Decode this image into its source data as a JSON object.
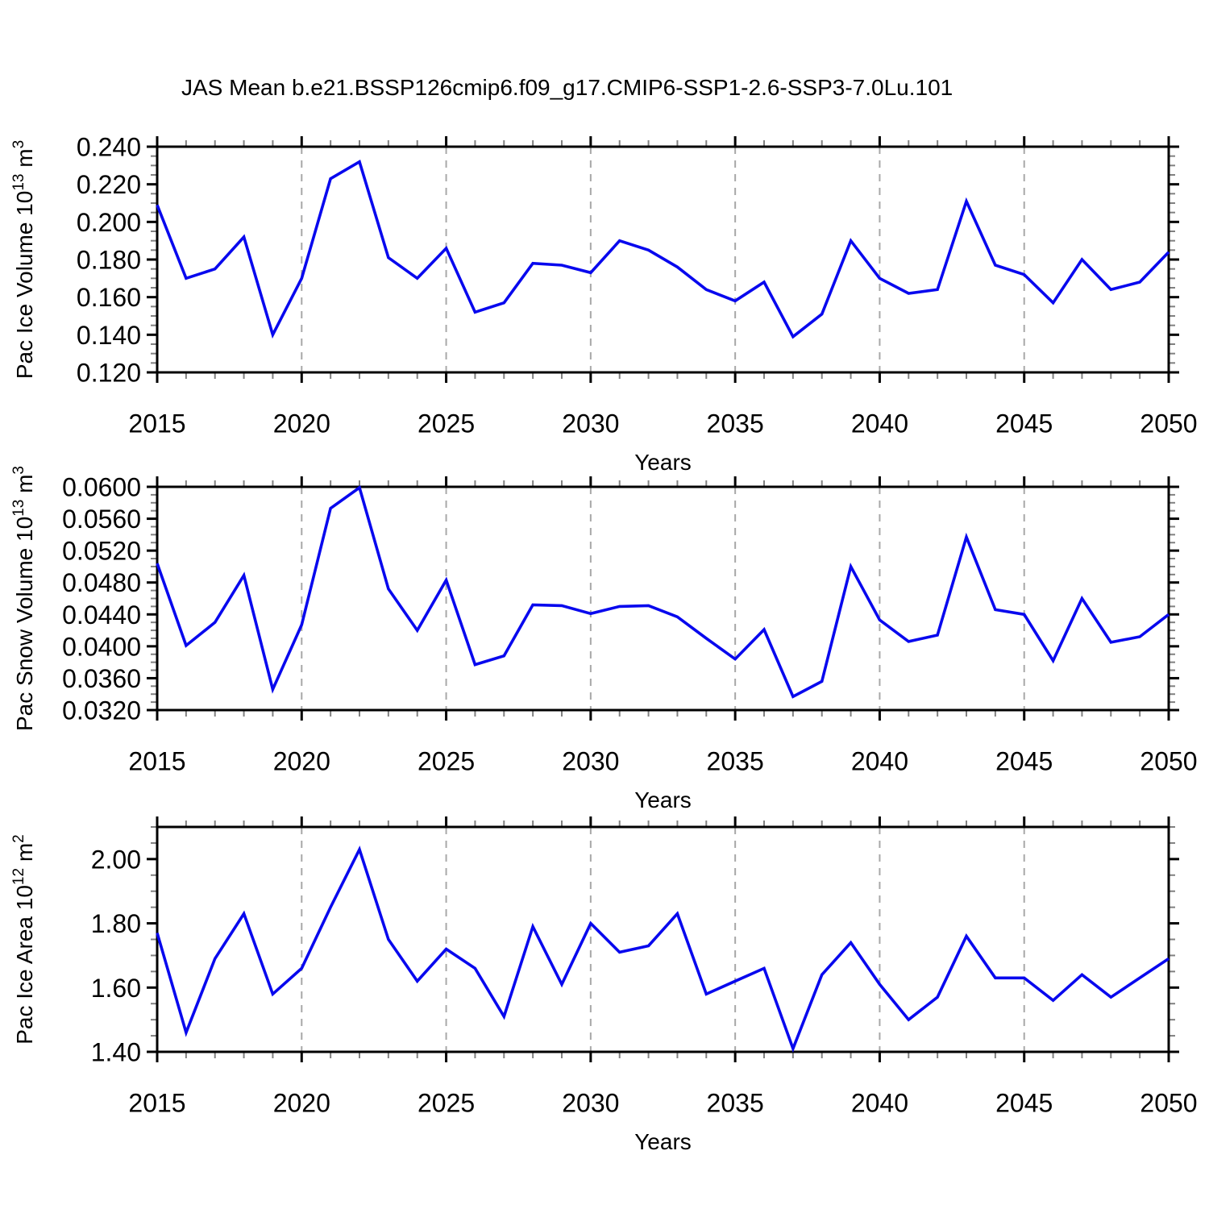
{
  "title": "JAS Mean b.e21.BSSP126cmip6.f09_g17.CMIP6-SSP1-2.6-SSP3-7.0Lu.101",
  "xlabel": "Years",
  "x_tick_labels": [
    "2015",
    "2020",
    "2025",
    "2030",
    "2035",
    "2040",
    "2045",
    "2050"
  ],
  "styles": {
    "line_color": "#0808ee",
    "grid_color": "#a8a8a8",
    "axis_color": "#000000",
    "minor_tick_color": "#808080",
    "background": "#ffffff"
  },
  "chart_data": [
    {
      "type": "line",
      "id": "pac-ice-volume",
      "ylabel": "Pac Ice Volume 10^13 m^3",
      "ylabel_parts": [
        [
          "Pac Ice Volume 10",
          "n"
        ],
        [
          "13",
          "s"
        ],
        [
          " m",
          "n"
        ],
        [
          "3",
          "s"
        ]
      ],
      "ylim": [
        0.12,
        0.24
      ],
      "ytick_values": [
        0.12,
        0.14,
        0.16,
        0.18,
        0.2,
        0.22,
        0.24
      ],
      "ytick_labels": [
        "0.120",
        "0.140",
        "0.160",
        "0.180",
        "0.200",
        "0.220",
        "0.240"
      ],
      "yminor_step": 0.005,
      "xlim": [
        2015,
        2050
      ],
      "xtick_major": [
        2015,
        2020,
        2025,
        2030,
        2035,
        2040,
        2045,
        2050
      ],
      "grid_x": [
        2020,
        2025,
        2030,
        2035,
        2040,
        2045
      ],
      "x": [
        2015,
        2016,
        2017,
        2018,
        2019,
        2020,
        2021,
        2022,
        2023,
        2024,
        2025,
        2026,
        2027,
        2028,
        2029,
        2030,
        2031,
        2032,
        2033,
        2034,
        2035,
        2036,
        2037,
        2038,
        2039,
        2040,
        2041,
        2042,
        2043,
        2044,
        2045,
        2046,
        2047,
        2048,
        2049,
        2050
      ],
      "values": [
        0.209,
        0.17,
        0.175,
        0.192,
        0.14,
        0.17,
        0.223,
        0.232,
        0.181,
        0.17,
        0.186,
        0.152,
        0.157,
        0.178,
        0.177,
        0.173,
        0.19,
        0.185,
        0.176,
        0.164,
        0.158,
        0.168,
        0.139,
        0.151,
        0.19,
        0.17,
        0.162,
        0.164,
        0.211,
        0.177,
        0.172,
        0.157,
        0.18,
        0.164,
        0.168,
        0.184
      ]
    },
    {
      "type": "line",
      "id": "pac-snow-volume",
      "ylabel": "Pac Snow Volume 10^13 m^3",
      "ylabel_parts": [
        [
          "Pac Snow Volume 10",
          "n"
        ],
        [
          "13",
          "s"
        ],
        [
          " m",
          "n"
        ],
        [
          "3",
          "s"
        ]
      ],
      "ylim": [
        0.032,
        0.06
      ],
      "ytick_values": [
        0.032,
        0.036,
        0.04,
        0.044,
        0.048,
        0.052,
        0.056,
        0.06
      ],
      "ytick_labels": [
        "0.0320",
        "0.0360",
        "0.0400",
        "0.0440",
        "0.0480",
        "0.0520",
        "0.0560",
        "0.0600"
      ],
      "yminor_step": 0.001,
      "xlim": [
        2015,
        2050
      ],
      "xtick_major": [
        2015,
        2020,
        2025,
        2030,
        2035,
        2040,
        2045,
        2050
      ],
      "grid_x": [
        2020,
        2025,
        2030,
        2035,
        2040,
        2045
      ],
      "x": [
        2015,
        2016,
        2017,
        2018,
        2019,
        2020,
        2021,
        2022,
        2023,
        2024,
        2025,
        2026,
        2027,
        2028,
        2029,
        2030,
        2031,
        2032,
        2033,
        2034,
        2035,
        2036,
        2037,
        2038,
        2039,
        2040,
        2041,
        2042,
        2043,
        2044,
        2045,
        2046,
        2047,
        2048,
        2049,
        2050
      ],
      "values": [
        0.0504,
        0.0401,
        0.043,
        0.0489,
        0.0346,
        0.0427,
        0.0573,
        0.0599,
        0.0472,
        0.042,
        0.0483,
        0.0377,
        0.0388,
        0.0452,
        0.0451,
        0.0441,
        0.045,
        0.0451,
        0.0437,
        0.041,
        0.0384,
        0.0421,
        0.0337,
        0.0356,
        0.05,
        0.0433,
        0.0406,
        0.0414,
        0.0537,
        0.0446,
        0.044,
        0.0382,
        0.046,
        0.0405,
        0.0412,
        0.044
      ]
    },
    {
      "type": "line",
      "id": "pac-ice-area",
      "ylabel": "Pac Ice Area 10^12 m^2",
      "ylabel_parts": [
        [
          "Pac Ice Area 10",
          "n"
        ],
        [
          "12",
          "s"
        ],
        [
          " m",
          "n"
        ],
        [
          "2",
          "s"
        ]
      ],
      "ylim": [
        1.4,
        2.1
      ],
      "ytick_values": [
        1.4,
        1.6,
        1.8,
        2.0
      ],
      "ytick_labels": [
        "1.40",
        "1.60",
        "1.80",
        "2.00"
      ],
      "yminor_step": 0.05,
      "xlim": [
        2015,
        2050
      ],
      "xtick_major": [
        2015,
        2020,
        2025,
        2030,
        2035,
        2040,
        2045,
        2050
      ],
      "grid_x": [
        2020,
        2025,
        2030,
        2035,
        2040,
        2045
      ],
      "x": [
        2015,
        2016,
        2017,
        2018,
        2019,
        2020,
        2021,
        2022,
        2023,
        2024,
        2025,
        2026,
        2027,
        2028,
        2029,
        2030,
        2031,
        2032,
        2033,
        2034,
        2035,
        2036,
        2037,
        2038,
        2039,
        2040,
        2041,
        2042,
        2043,
        2044,
        2045,
        2046,
        2047,
        2048,
        2049,
        2050
      ],
      "values": [
        1.77,
        1.46,
        1.69,
        1.83,
        1.58,
        1.66,
        1.85,
        2.03,
        1.75,
        1.62,
        1.72,
        1.66,
        1.51,
        1.79,
        1.61,
        1.8,
        1.71,
        1.73,
        1.83,
        1.58,
        1.62,
        1.66,
        1.41,
        1.64,
        1.74,
        1.61,
        1.5,
        1.57,
        1.76,
        1.63,
        1.63,
        1.56,
        1.64,
        1.57,
        1.63,
        1.69
      ]
    }
  ]
}
